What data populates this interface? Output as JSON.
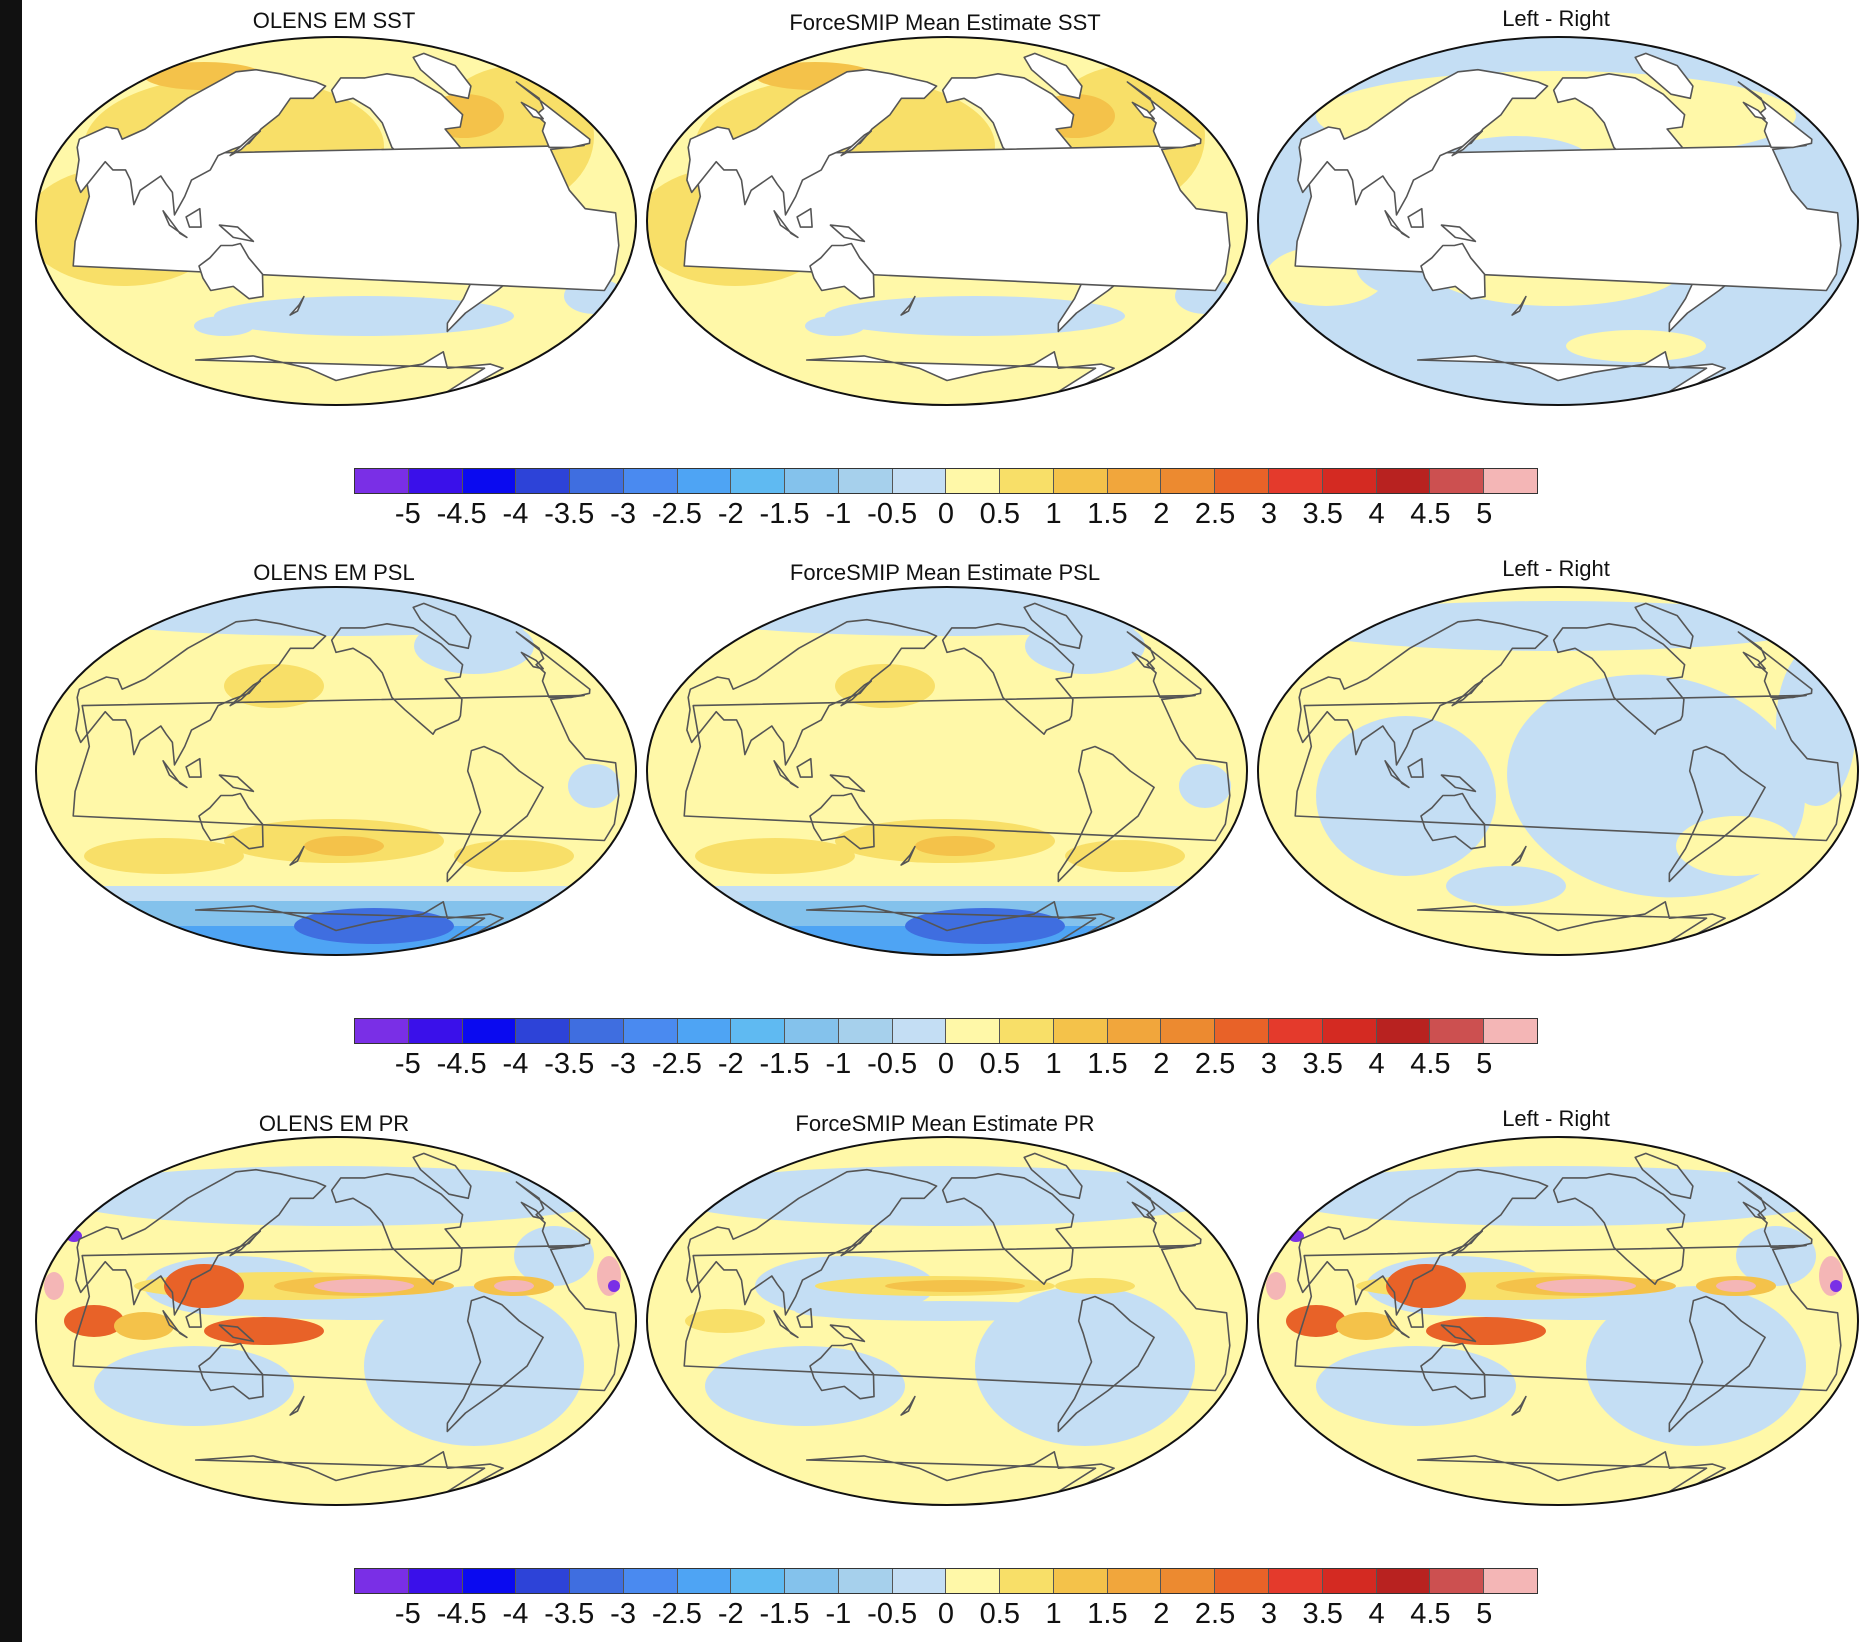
{
  "rows": [
    {
      "variable": "SST",
      "panels": [
        {
          "title": "OLENS EM SST",
          "field": "sst_em"
        },
        {
          "title": "ForceSMIP Mean Estimate SST",
          "field": "sst_fs"
        },
        {
          "title": "Left - Right",
          "field": "sst_diff"
        }
      ]
    },
    {
      "variable": "PSL",
      "panels": [
        {
          "title": "OLENS EM PSL",
          "field": "psl_em"
        },
        {
          "title": "ForceSMIP Mean Estimate PSL",
          "field": "psl_fs"
        },
        {
          "title": "Left - Right",
          "field": "psl_diff"
        }
      ]
    },
    {
      "variable": "PR",
      "panels": [
        {
          "title": "OLENS EM PR",
          "field": "pr_em"
        },
        {
          "title": "ForceSMIP Mean Estimate PR",
          "field": "pr_fs"
        },
        {
          "title": "Left - Right",
          "field": "pr_diff"
        }
      ]
    }
  ],
  "colorbar": {
    "tick_labels": [
      "-5",
      "-4.5",
      "-4",
      "-3.5",
      "-3",
      "-2.5",
      "-2",
      "-1.5",
      "-1",
      "-0.5",
      "0",
      "0.5",
      "1",
      "1.5",
      "2",
      "2.5",
      "3",
      "3.5",
      "4",
      "4.5",
      "5"
    ],
    "colors": [
      "#7a2fe6",
      "#3a10ea",
      "#0a0af0",
      "#2d43d8",
      "#3f6ee0",
      "#4a8af0",
      "#4ea4f4",
      "#5fbaf2",
      "#84c2ec",
      "#a6d0ec",
      "#c4def4",
      "#fff8a8",
      "#f8df68",
      "#f4c24a",
      "#f1a63c",
      "#ec8a30",
      "#e86228",
      "#e43a2c",
      "#d42a22",
      "#b82220",
      "#cc5050",
      "#f4b6b6"
    ]
  },
  "land_color": "#ffffff",
  "coast_color": "#555555"
}
